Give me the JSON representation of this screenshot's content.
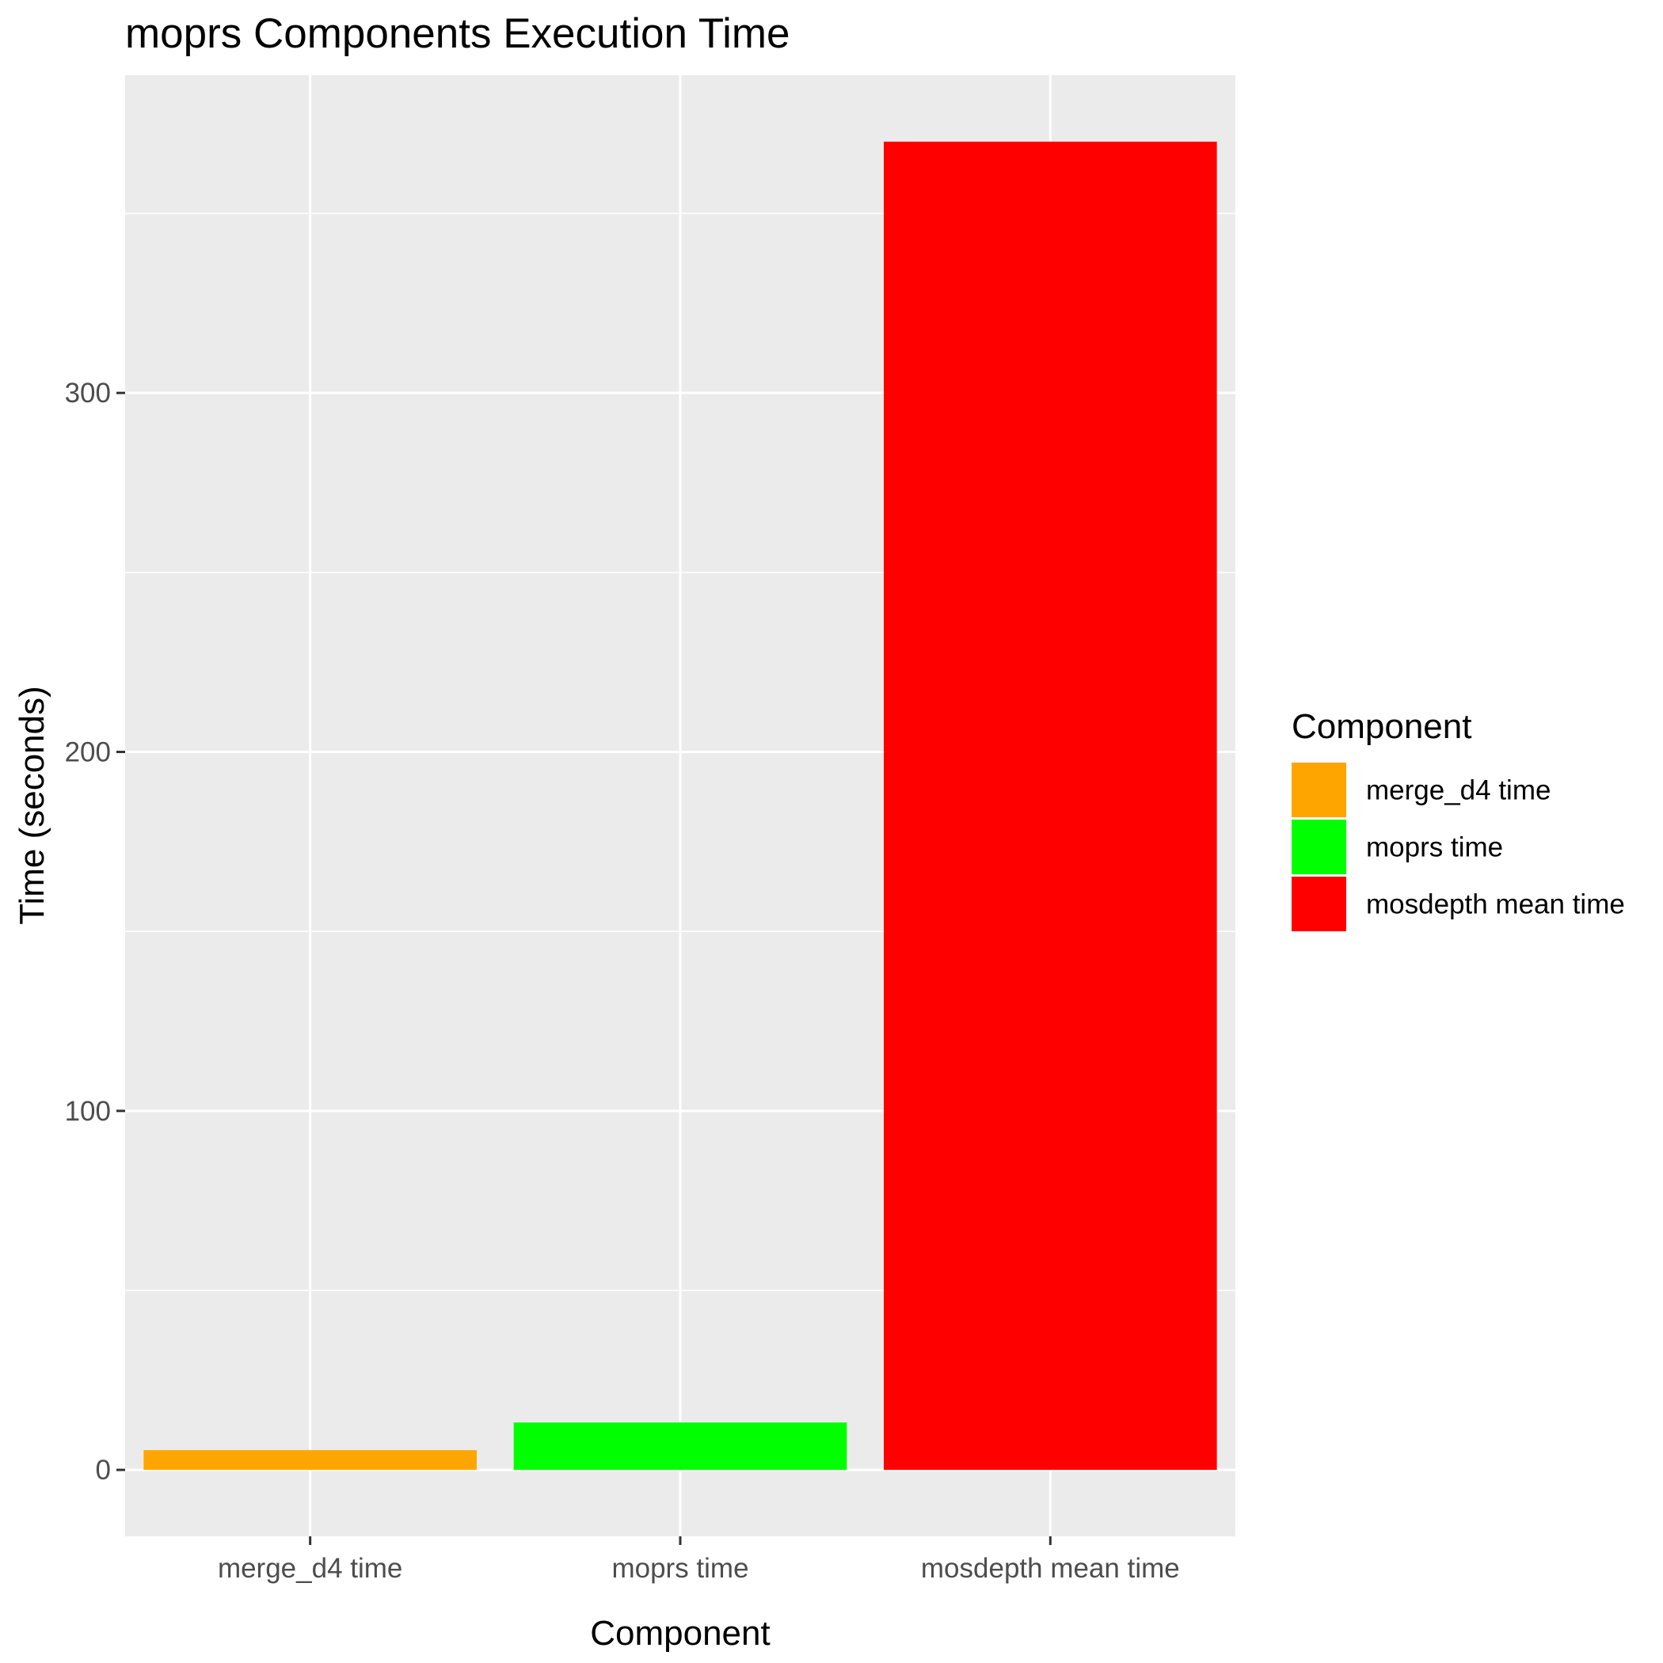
{
  "chart_data": {
    "type": "bar",
    "title": "moprs Components Execution Time",
    "xlabel": "Component",
    "ylabel": "Time (seconds)",
    "categories": [
      "merge_d4 time",
      "moprs time",
      "mosdepth mean time"
    ],
    "values": [
      5.5,
      13.2,
      370.0
    ],
    "colors": [
      "#FFA500",
      "#00FF00",
      "#FF0000"
    ],
    "ylim": [
      -18.5,
      388.5
    ],
    "yticks": [
      0,
      100,
      200,
      300
    ],
    "ytick_labels": [
      "0",
      "100",
      "200",
      "300"
    ],
    "grid": true,
    "panel_background": "#EBEBEB",
    "grid_color": "#FFFFFF",
    "legend": {
      "title": "Component",
      "position": "right",
      "items": [
        {
          "label": "merge_d4 time",
          "color": "#FFA500"
        },
        {
          "label": "moprs time",
          "color": "#00FF00"
        },
        {
          "label": "mosdepth mean time",
          "color": "#FF0000"
        }
      ]
    }
  }
}
